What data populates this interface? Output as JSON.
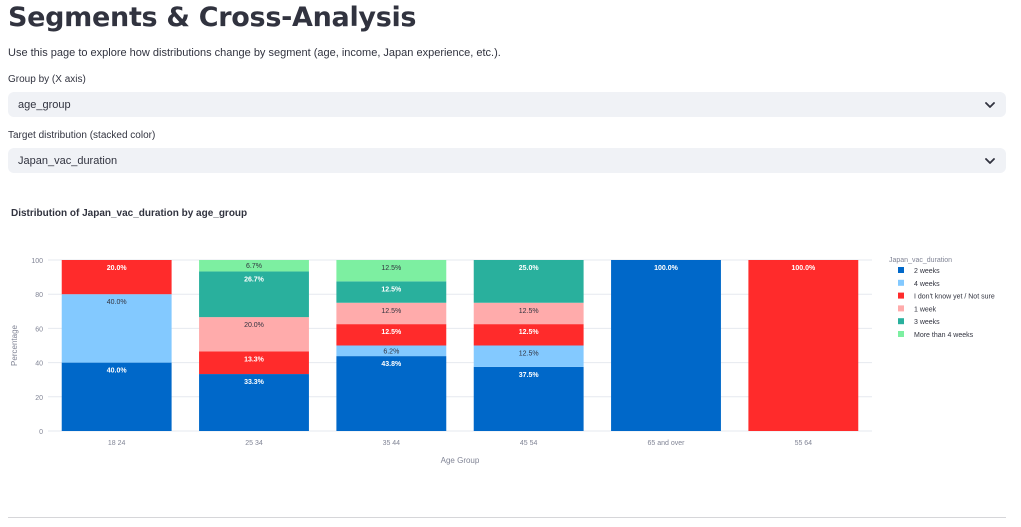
{
  "page": {
    "title": "Segments & Cross-Analysis",
    "description": "Use this page to explore how distributions change by segment (age, income, Japan experience, etc.)."
  },
  "controls": {
    "group_by": {
      "label": "Group by (X axis)",
      "value": "age_group",
      "icon": "chevron-down-icon"
    },
    "target": {
      "label": "Target distribution (stacked color)",
      "value": "Japan_vac_duration",
      "icon": "chevron-down-icon"
    }
  },
  "chart_title": "Distribution of Japan_vac_duration by age_group",
  "chart_data": {
    "type": "bar",
    "stacked": true,
    "xlabel": "Age Group",
    "ylabel": "Percentage",
    "ylim": [
      0,
      100
    ],
    "yticks": [
      0,
      20,
      40,
      60,
      80,
      100
    ],
    "grid": true,
    "legend_title": "Japan_vac_duration",
    "legend_position": "right",
    "categories": [
      "18 24",
      "25 34",
      "35 44",
      "45 54",
      "65 and over",
      "55 64"
    ],
    "series": [
      {
        "name": "2 weeks",
        "color": "#0068c9",
        "values": [
          40.0,
          33.3,
          43.8,
          37.5,
          100.0,
          0
        ],
        "labels": [
          "40.0%",
          "33.3%",
          "43.8%",
          "37.5%",
          "100.0%",
          ""
        ]
      },
      {
        "name": "4 weeks",
        "color": "#83c9ff",
        "values": [
          40.0,
          0,
          6.2,
          12.5,
          0,
          0
        ],
        "labels": [
          "40.0%",
          "",
          "6.2%",
          "12.5%",
          "",
          ""
        ]
      },
      {
        "name": "I don't know yet / Not sure",
        "color": "#ff2b2b",
        "values": [
          20.0,
          13.3,
          12.5,
          12.5,
          0,
          100.0
        ],
        "labels": [
          "20.0%",
          "13.3%",
          "12.5%",
          "12.5%",
          "",
          "100.0%"
        ]
      },
      {
        "name": "1 week",
        "color": "#ffabab",
        "values": [
          0,
          20.0,
          12.5,
          12.5,
          0,
          0
        ],
        "labels": [
          "",
          "20.0%",
          "12.5%",
          "12.5%",
          "",
          ""
        ]
      },
      {
        "name": "3 weeks",
        "color": "#29b09d",
        "values": [
          0,
          26.7,
          12.5,
          25.0,
          0,
          0
        ],
        "labels": [
          "",
          "26.7%",
          "12.5%",
          "25.0%",
          "",
          ""
        ]
      },
      {
        "name": "More than 4 weeks",
        "color": "#7defa1",
        "values": [
          0,
          6.7,
          12.5,
          0,
          0,
          0
        ],
        "labels": [
          "",
          "6.7%",
          "12.5%",
          "",
          "",
          ""
        ]
      }
    ]
  }
}
